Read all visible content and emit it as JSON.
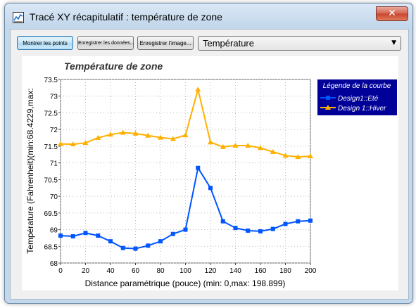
{
  "window": {
    "title": "Tracé XY récapitulatif : température de zone",
    "app_icon": "plot-icon",
    "close_icon": "close-icon",
    "close_glyph": "✕"
  },
  "toolbar": {
    "show_points_label": "Montrer les points",
    "save_data_label": "Enregistrer les données...",
    "save_image_label": "Enregistrer l'image...",
    "quantity_select": {
      "value": "Température",
      "arrow": "▼"
    }
  },
  "chart_data": {
    "type": "line",
    "title": "Température de zone",
    "xlabel": "Distance paramétrique (pouce) (min: 0,max: 198.899)",
    "ylabel": "Température (Fahrenheit)(min:68.4229,max:",
    "xlim": [
      0,
      200
    ],
    "ylim": [
      68,
      73.5
    ],
    "xticks": [
      0,
      20,
      40,
      60,
      80,
      100,
      120,
      140,
      160,
      180,
      200
    ],
    "yticks": [
      68,
      68.5,
      69,
      69.5,
      70,
      70.5,
      71,
      71.5,
      72,
      72.5,
      73,
      73.5
    ],
    "grid": true,
    "legend": {
      "title": "Légende de la courbe",
      "placement": "top-right",
      "background": "#000099"
    },
    "series": [
      {
        "name": "Design1::Eté",
        "color": "#0055ff",
        "marker": "square",
        "x": [
          0,
          10,
          20,
          30,
          40,
          50,
          60,
          70,
          80,
          90,
          100,
          110,
          120,
          130,
          140,
          150,
          160,
          170,
          180,
          190,
          200
        ],
        "y": [
          68.82,
          68.8,
          68.9,
          68.82,
          68.65,
          68.45,
          68.43,
          68.52,
          68.65,
          68.87,
          69.0,
          70.85,
          70.25,
          69.25,
          69.05,
          68.97,
          68.95,
          69.02,
          69.17,
          69.25,
          69.27
        ]
      },
      {
        "name": "Design 1::Hiver",
        "color": "#ffb000",
        "marker": "triangle",
        "x": [
          0,
          10,
          20,
          30,
          40,
          50,
          60,
          70,
          80,
          90,
          100,
          110,
          120,
          130,
          140,
          150,
          160,
          170,
          180,
          190,
          200
        ],
        "y": [
          71.57,
          71.56,
          71.6,
          71.75,
          71.85,
          71.91,
          71.88,
          71.82,
          71.76,
          71.72,
          71.83,
          73.2,
          71.62,
          71.48,
          71.52,
          71.52,
          71.45,
          71.33,
          71.22,
          71.18,
          71.2
        ]
      }
    ]
  }
}
